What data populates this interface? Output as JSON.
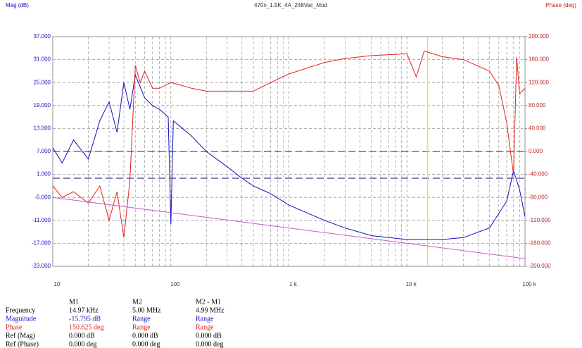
{
  "chart_data": {
    "type": "line",
    "title": "470n_1.5K_4A_248Vac_Mod",
    "y_label": "Mag (dB)",
    "y2_label": "Phase (deg)",
    "xscale": "log",
    "xlim": [
      10,
      100000
    ],
    "xticks": [
      10,
      100,
      {
        "value": 1000,
        "label": "1 k"
      },
      {
        "value": 10000,
        "label": "10 k"
      },
      {
        "value": 100000,
        "label": "100 k"
      }
    ],
    "ylim": [
      -23,
      37
    ],
    "yticks": [
      {
        "value": 37,
        "label": "37.000"
      },
      {
        "value": 31,
        "label": "31.000"
      },
      {
        "value": 25,
        "label": "25.000"
      },
      {
        "value": 19,
        "label": "19.000"
      },
      {
        "value": 13,
        "label": "13.000"
      },
      {
        "value": 7,
        "label": "7.000"
      },
      {
        "value": 1,
        "label": "1.000"
      },
      {
        "value": -5,
        "label": "-5.000"
      },
      {
        "value": -11,
        "label": "-11.000"
      },
      {
        "value": -17,
        "label": "-17.000"
      },
      {
        "value": -23,
        "label": "-23.000"
      }
    ],
    "y2lim": [
      -200,
      200
    ],
    "y2ticks": [
      {
        "value": 200,
        "label": "200.000"
      },
      {
        "value": 160,
        "label": "160.000"
      },
      {
        "value": 120,
        "label": "120.000"
      },
      {
        "value": 80,
        "label": "80.000"
      },
      {
        "value": 40,
        "label": "40.000"
      },
      {
        "value": 0,
        "label": "0.000"
      },
      {
        "value": -40,
        "label": "-40.000"
      },
      {
        "value": -80,
        "label": "-80.000"
      },
      {
        "value": -120,
        "label": "-120.000"
      },
      {
        "value": -160,
        "label": "-160.000"
      },
      {
        "value": -200,
        "label": "-200.000"
      }
    ],
    "grid": true,
    "cursor_x": 14970,
    "cursor_color": "#f0e020",
    "ref_lines": [
      {
        "axis": "y",
        "value": 0,
        "color": "#000080"
      },
      {
        "axis": "y2",
        "value": 0,
        "color": "#800000"
      }
    ],
    "series": [
      {
        "color": "#1010c0",
        "x": [
          10,
          12,
          15,
          20,
          25,
          30,
          35,
          40,
          45,
          50,
          60,
          70,
          80,
          95,
          100,
          105,
          150,
          200,
          300,
          400,
          500,
          700,
          1000,
          2000,
          3000,
          5000,
          10000,
          15000,
          20000,
          30000,
          50000,
          70000,
          80000,
          90000,
          100000
        ],
        "values": [
          8,
          4,
          10,
          5,
          15,
          20,
          12,
          25,
          18,
          27,
          21,
          19,
          18,
          16,
          -12,
          15,
          11,
          7,
          3,
          0,
          -2,
          -4,
          -7,
          -11,
          -13,
          -15,
          -16,
          -16,
          -16,
          -15.5,
          -13,
          -6,
          2,
          -3,
          -10
        ]
      },
      {
        "color": "#e02020",
        "axis": "y2",
        "x": [
          10,
          12,
          15,
          20,
          25,
          30,
          35,
          40,
          45,
          50,
          55,
          60,
          70,
          80,
          100,
          150,
          200,
          300,
          500,
          700,
          1000,
          2000,
          3000,
          5000,
          10000,
          12000,
          14000,
          20000,
          30000,
          50000,
          60000,
          70000,
          80000,
          85000,
          90000,
          100000
        ],
        "values": [
          -60,
          -80,
          -70,
          -90,
          -60,
          -120,
          -70,
          -150,
          -50,
          150,
          120,
          140,
          110,
          110,
          120,
          110,
          105,
          105,
          105,
          120,
          135,
          155,
          162,
          167,
          170,
          130,
          175,
          165,
          160,
          140,
          115,
          50,
          -40,
          165,
          100,
          110
        ]
      },
      {
        "color": "#c060c0",
        "x": [
          10,
          100000
        ],
        "values": [
          -5,
          -21
        ]
      }
    ]
  },
  "table": {
    "columns": [
      "M1",
      "M2",
      "M2 - M1"
    ],
    "rows": [
      {
        "label": "Frequency",
        "color": "#000000",
        "cells": [
          "14.97 kHz",
          "5.00 MHz",
          "4.99 MHz"
        ]
      },
      {
        "label": "Maguitude",
        "color": "#1010c0",
        "cells": [
          "-15.795 dB",
          "Range",
          "Range"
        ]
      },
      {
        "label": "Phase",
        "color": "#e02020",
        "cells": [
          "150.625 deg",
          "Range",
          "Range"
        ]
      },
      {
        "label": "Ref (Mag)",
        "color": "#000000",
        "cells": [
          "0.000 dB",
          "0.000 dB",
          "0.000 dB"
        ]
      },
      {
        "label": "Ref (Phase)",
        "color": "#000000",
        "cells": [
          "0.000 deg",
          "0.000 deg",
          "0.000 deg"
        ]
      }
    ]
  }
}
